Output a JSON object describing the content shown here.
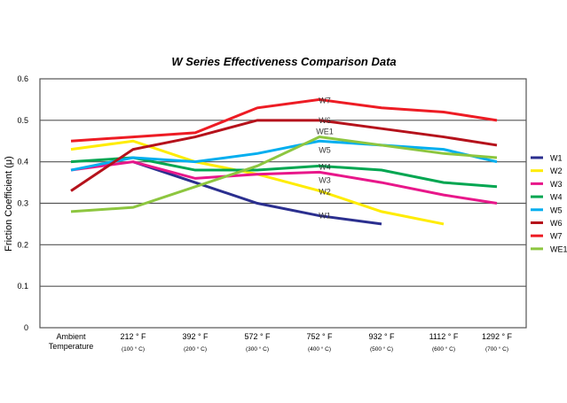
{
  "chart_data": {
    "type": "line",
    "title": "W Series Effectiveness Comparison Data",
    "ylabel": "Friction Coefficient (μ)",
    "xlabel": "",
    "ylim": [
      0,
      0.6
    ],
    "yticks": [
      "0",
      "0.1",
      "0.2",
      "0.3",
      "0.4",
      "0.5",
      "0.6"
    ],
    "grid": true,
    "legend": "right",
    "categories": [
      {
        "line1": "Ambient",
        "line2": "Temperature"
      },
      {
        "line1": "212 ° F",
        "line2": "(100 ° C)"
      },
      {
        "line1": "392 ° F",
        "line2": "(200 ° C)"
      },
      {
        "line1": "572 ° F",
        "line2": "(300 ° C)"
      },
      {
        "line1": "752 ° F",
        "line2": "(400 ° C)"
      },
      {
        "line1": "932 ° F",
        "line2": "(500 ° C)"
      },
      {
        "line1": "1112 ° F",
        "line2": "(600 ° C)"
      },
      {
        "line1": "1292 ° F",
        "line2": "(700 ° C)"
      }
    ],
    "series": [
      {
        "name": "W1",
        "color": "#2b2f8f",
        "values": [
          null,
          0.4,
          0.35,
          0.3,
          0.27,
          0.25,
          null,
          null
        ]
      },
      {
        "name": "W2",
        "color": "#ffec00",
        "values": [
          0.43,
          0.45,
          0.4,
          0.37,
          0.33,
          0.28,
          0.25,
          null
        ]
      },
      {
        "name": "W3",
        "color": "#e8178a",
        "values": [
          0.38,
          0.4,
          0.36,
          0.37,
          0.375,
          0.35,
          0.32,
          0.3
        ]
      },
      {
        "name": "W4",
        "color": "#00a651",
        "values": [
          0.4,
          0.41,
          0.38,
          0.38,
          0.39,
          0.38,
          0.35,
          0.34
        ]
      },
      {
        "name": "W5",
        "color": "#00aeef",
        "values": [
          0.38,
          0.41,
          0.4,
          0.42,
          0.45,
          0.44,
          0.43,
          0.4
        ]
      },
      {
        "name": "W6",
        "color": "#b5121b",
        "values": [
          0.33,
          0.43,
          0.46,
          0.5,
          0.5,
          0.48,
          0.46,
          0.44
        ]
      },
      {
        "name": "W7",
        "color": "#ed1c24",
        "values": [
          0.45,
          0.46,
          0.47,
          0.53,
          0.55,
          0.53,
          0.52,
          0.5
        ]
      },
      {
        "name": "WE1",
        "color": "#8dc63f",
        "values": [
          0.28,
          0.29,
          0.34,
          0.39,
          0.46,
          0.44,
          0.42,
          0.41
        ]
      }
    ]
  }
}
